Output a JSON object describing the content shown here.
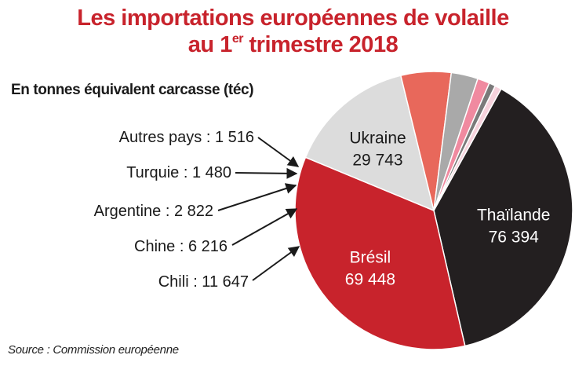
{
  "title": {
    "line1": "Les importations européennes de volaille",
    "line2_prefix": "au 1",
    "line2_sup": "er",
    "line2_suffix": " trimestre 2018"
  },
  "subtitle": "En tonnes équivalent carcasse (téc)",
  "source": "Source : Commission européenne",
  "colors": {
    "title": "#c8232c",
    "thailande": "#231f20",
    "bresil": "#c8232c",
    "ukraine": "#dcdcdc",
    "chili": "#e8685b",
    "chine": "#a9a9a9",
    "argentine": "#f08aa0",
    "turquie": "#7a7a7a",
    "autres": "#f6d2dc"
  },
  "chart_data": {
    "type": "pie",
    "title": "Les importations européennes de volaille au 1er trimestre 2018",
    "unit": "En tonnes équivalent carcasse (téc)",
    "slices": [
      {
        "key": "thailande",
        "name": "Thaïlande",
        "value": 76394,
        "value_label": "76 394"
      },
      {
        "key": "bresil",
        "name": "Brésil",
        "value": 69448,
        "value_label": "69 448"
      },
      {
        "key": "ukraine",
        "name": "Ukraine",
        "value": 29743,
        "value_label": "29 743"
      },
      {
        "key": "chili",
        "name": "Chili",
        "value": 11647,
        "value_label": "11 647",
        "label": "Chili : 11 647"
      },
      {
        "key": "chine",
        "name": "Chine",
        "value": 6216,
        "value_label": "6 216",
        "label": "Chine : 6 216"
      },
      {
        "key": "argentine",
        "name": "Argentine",
        "value": 2822,
        "value_label": "2 822",
        "label": "Argentine : 2 822"
      },
      {
        "key": "turquie",
        "name": "Turquie",
        "value": 1480,
        "value_label": "1 480",
        "label": "Turquie : 1 480"
      },
      {
        "key": "autres",
        "name": "Autres pays",
        "value": 1516,
        "value_label": "1 516",
        "label": "Autres pays : 1 516"
      }
    ]
  }
}
